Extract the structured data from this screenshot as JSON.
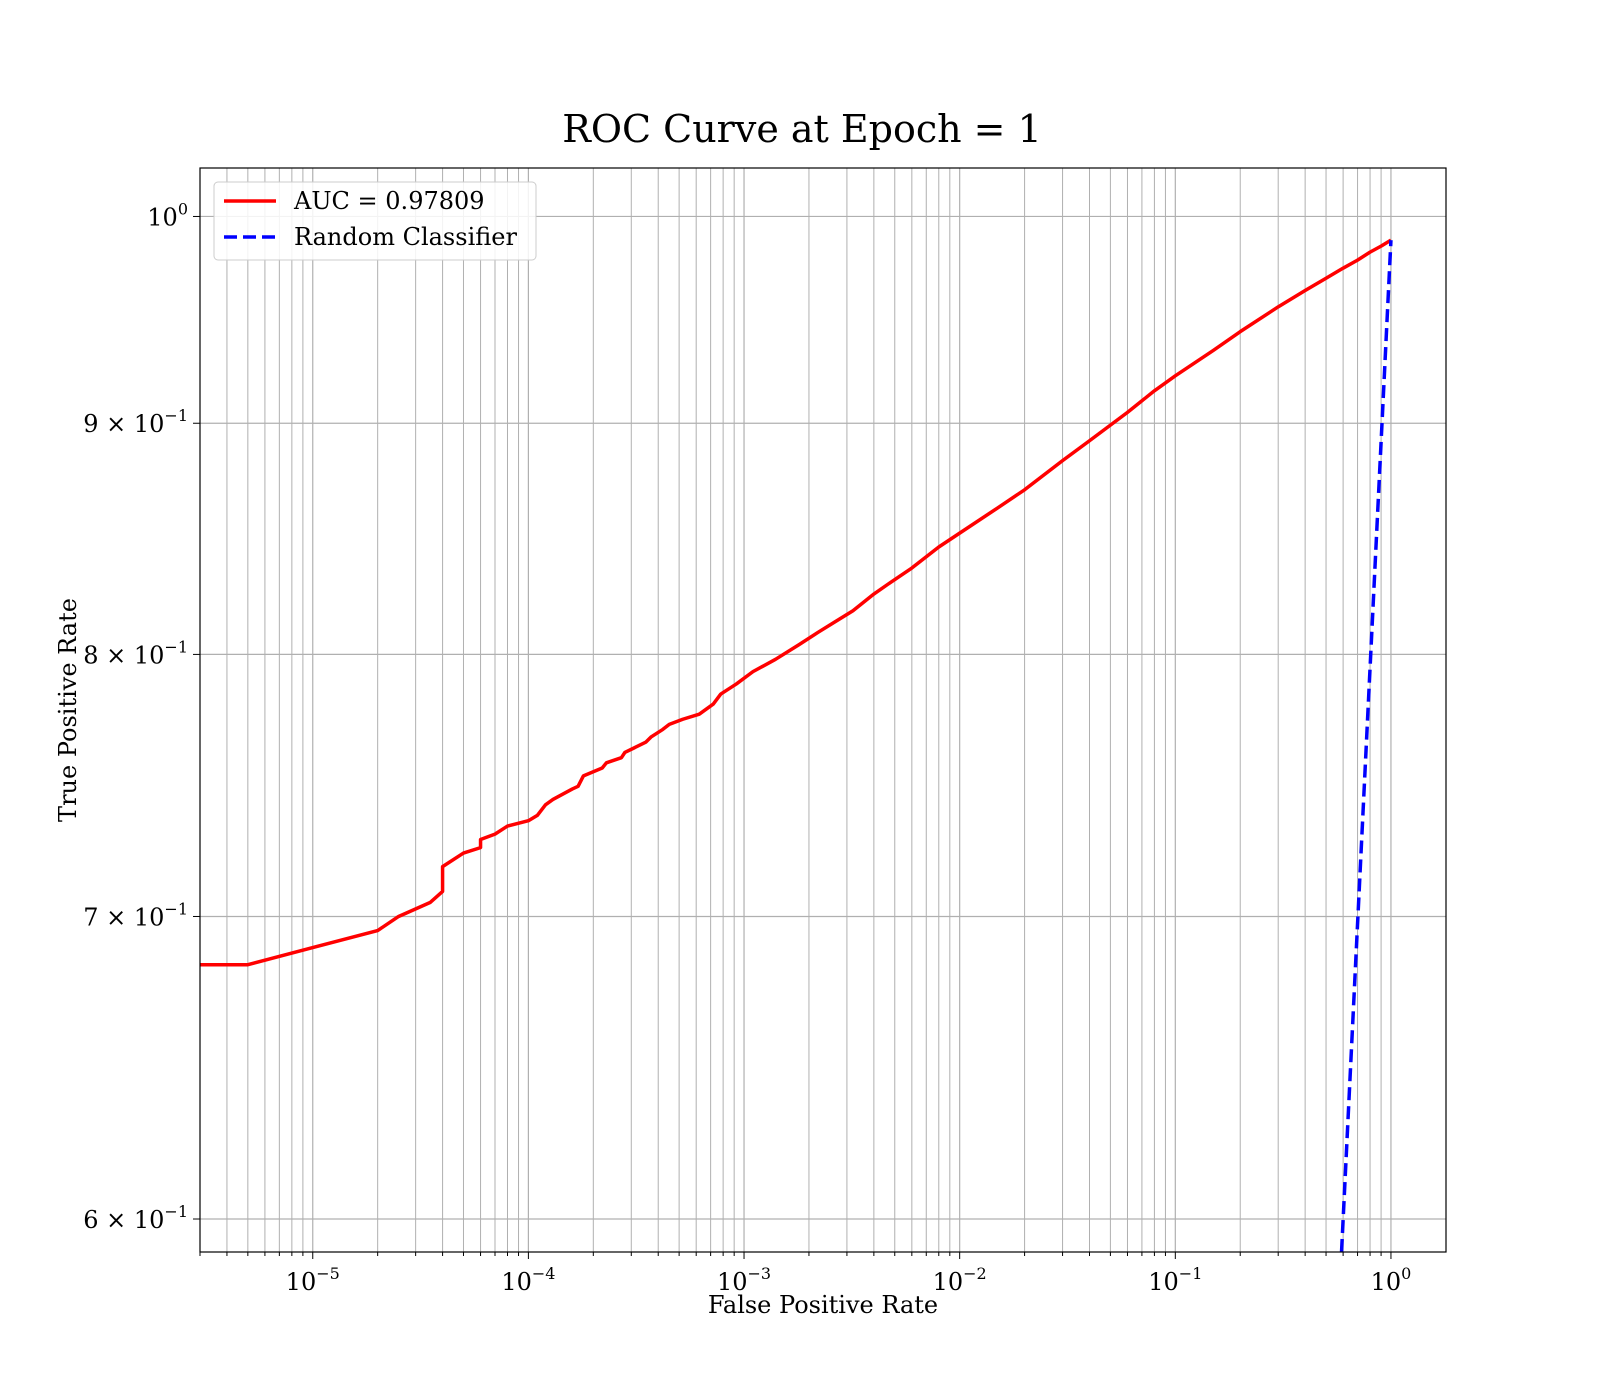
{
  "chart_data": {
    "type": "line",
    "title": "ROC Curve at Epoch = 1",
    "xlabel": "False Positive Rate",
    "ylabel": "True Positive Rate",
    "xscale": "log",
    "yscale": "log",
    "xlim": [
      3e-06,
      1.8
    ],
    "ylim": [
      0.59,
      1.025
    ],
    "grid": true,
    "legend_position": "upper-left",
    "x_ticks": [
      {
        "base": "10",
        "exp": "−5",
        "value": 1e-05
      },
      {
        "base": "10",
        "exp": "−4",
        "value": 0.0001
      },
      {
        "base": "10",
        "exp": "−3",
        "value": 0.001
      },
      {
        "base": "10",
        "exp": "−2",
        "value": 0.01
      },
      {
        "base": "10",
        "exp": "−1",
        "value": 0.1
      },
      {
        "base": "10",
        "exp": "0",
        "value": 1
      }
    ],
    "y_ticks": [
      {
        "prefix": "",
        "base": "10",
        "exp": "0",
        "value": 1.0
      },
      {
        "prefix": "9 × ",
        "base": "10",
        "exp": "−1",
        "value": 0.9
      },
      {
        "prefix": "8 × ",
        "base": "10",
        "exp": "−1",
        "value": 0.8
      },
      {
        "prefix": "7 × ",
        "base": "10",
        "exp": "−1",
        "value": 0.7
      },
      {
        "prefix": "6 × ",
        "base": "10",
        "exp": "−1",
        "value": 0.6
      }
    ],
    "series": [
      {
        "name": "AUC = 0.97809",
        "color": "#ff0000",
        "style": "solid",
        "x": [
          3e-06,
          5e-06,
          1e-05,
          2e-05,
          2.5e-05,
          3.5e-05,
          4e-05,
          4e-05,
          5e-05,
          6e-05,
          6e-05,
          7e-05,
          8e-05,
          0.0001,
          0.00011,
          0.00012,
          0.00013,
          0.00016,
          0.00017,
          0.00018,
          0.00022,
          0.00023,
          0.00027,
          0.00028,
          0.00035,
          0.00037,
          0.00042,
          0.00045,
          0.00052,
          0.00062,
          0.00072,
          0.00078,
          0.00092,
          0.0011,
          0.0014,
          0.0018,
          0.0022,
          0.0026,
          0.0032,
          0.004,
          0.0048,
          0.006,
          0.008,
          0.01,
          0.015,
          0.02,
          0.03,
          0.04,
          0.06,
          0.08,
          0.1,
          0.15,
          0.2,
          0.3,
          0.4,
          0.5,
          0.6,
          0.7,
          0.8,
          0.9,
          1.0
        ],
        "y": [
          0.683,
          0.683,
          0.689,
          0.695,
          0.7,
          0.705,
          0.709,
          0.718,
          0.723,
          0.725,
          0.728,
          0.73,
          0.733,
          0.735,
          0.737,
          0.741,
          0.743,
          0.747,
          0.748,
          0.752,
          0.755,
          0.757,
          0.759,
          0.761,
          0.765,
          0.767,
          0.77,
          0.772,
          0.774,
          0.776,
          0.78,
          0.784,
          0.788,
          0.793,
          0.798,
          0.804,
          0.809,
          0.813,
          0.818,
          0.825,
          0.83,
          0.836,
          0.845,
          0.851,
          0.862,
          0.87,
          0.883,
          0.892,
          0.905,
          0.915,
          0.922,
          0.934,
          0.943,
          0.955,
          0.963,
          0.969,
          0.974,
          0.978,
          0.982,
          0.985,
          0.988
        ]
      },
      {
        "name": "Random Classifier",
        "color": "#0000ff",
        "style": "dashed",
        "x": [
          0.59,
          1.0
        ],
        "y": [
          0.59,
          0.988
        ]
      }
    ]
  }
}
